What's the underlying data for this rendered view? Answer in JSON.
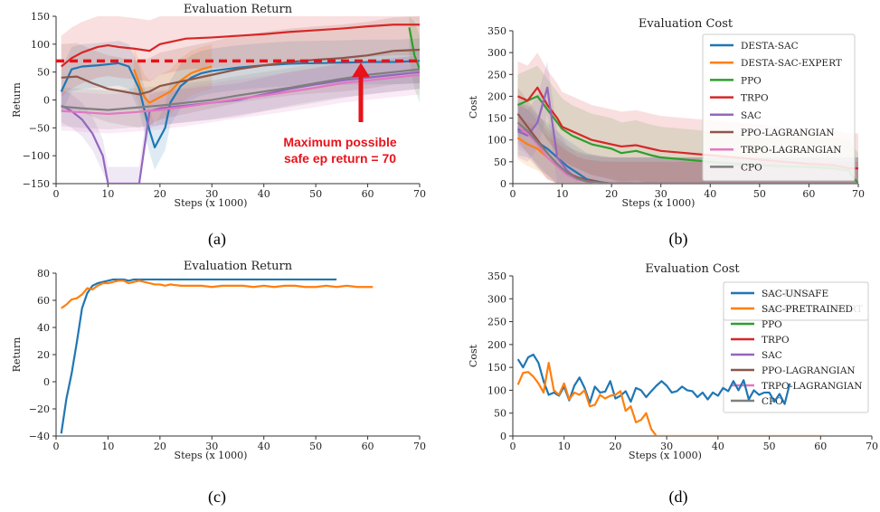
{
  "chart_data": [
    {
      "type": "line",
      "panel": "a",
      "title": "Evaluation Return",
      "xlabel": "Steps (x 1000)",
      "ylabel": "Return",
      "xlim": [
        0,
        70
      ],
      "ylim": [
        -150,
        150
      ],
      "xticks": [
        "0",
        "10",
        "20",
        "30",
        "40",
        "50",
        "60",
        "70"
      ],
      "yticks": [
        "150",
        "100",
        "50",
        "0",
        "−50",
        "−100",
        "−150"
      ],
      "caption": "(a)",
      "annotation": {
        "text": [
          "Maximum possible",
          "safe ep return = 70"
        ],
        "line_value": 70,
        "color": "#e8121a"
      },
      "series": [
        {
          "name": "DESTA-SAC",
          "color": "#1f77b4",
          "x": [
            1,
            3,
            5,
            8,
            10,
            12,
            14,
            16,
            18,
            19,
            21,
            22,
            24,
            26,
            28,
            30,
            35,
            40,
            45,
            50,
            55,
            60,
            65,
            70
          ],
          "y": [
            15,
            55,
            60,
            62,
            64,
            66,
            60,
            20,
            -55,
            -85,
            -50,
            -5,
            25,
            40,
            48,
            52,
            58,
            62,
            65,
            66,
            67,
            68,
            68,
            70
          ],
          "band": 40
        },
        {
          "name": "DESTA-SAC-EXPERT",
          "color": "#ff7f0e",
          "x": [
            15,
            16,
            17,
            18,
            19,
            20,
            22,
            24,
            26,
            28,
            30
          ],
          "y": [
            55,
            30,
            5,
            -5,
            0,
            5,
            15,
            35,
            48,
            55,
            60
          ],
          "band": 40
        },
        {
          "name": "PPO",
          "color": "#2ca02c",
          "x": [
            68,
            69,
            70
          ],
          "y": [
            130,
            80,
            55
          ],
          "band": 60
        },
        {
          "name": "TRPO",
          "color": "#d62728",
          "x": [
            1,
            3,
            5,
            8,
            10,
            12,
            15,
            18,
            20,
            25,
            30,
            35,
            40,
            45,
            50,
            55,
            60,
            65,
            70
          ],
          "y": [
            60,
            75,
            85,
            95,
            98,
            95,
            92,
            88,
            100,
            110,
            112,
            115,
            118,
            122,
            125,
            128,
            132,
            135,
            135
          ],
          "band": 55
        },
        {
          "name": "SAC",
          "color": "#9467bd",
          "x": [
            1,
            3,
            5,
            7,
            9,
            10,
            11,
            12,
            14,
            16,
            18,
            20,
            25,
            30,
            35,
            40,
            45,
            50,
            55,
            60,
            65,
            70
          ],
          "y": [
            -10,
            -20,
            -35,
            -60,
            -100,
            -150,
            -150,
            -150,
            -150,
            -150,
            -20,
            -15,
            -10,
            -5,
            0,
            10,
            20,
            28,
            35,
            40,
            45,
            50
          ],
          "band": 30
        },
        {
          "name": "PPO-LAGRANGIAN",
          "color": "#8c564b",
          "x": [
            1,
            4,
            7,
            10,
            13,
            16,
            18,
            20,
            25,
            30,
            35,
            40,
            45,
            50,
            55,
            60,
            65,
            70
          ],
          "y": [
            40,
            42,
            30,
            20,
            15,
            10,
            15,
            25,
            35,
            45,
            55,
            62,
            68,
            72,
            75,
            80,
            88,
            90
          ],
          "band": 60
        },
        {
          "name": "TRPO-LAGRANGIAN",
          "color": "#e377c2",
          "x": [
            1,
            5,
            10,
            15,
            20,
            25,
            30,
            35,
            40,
            45,
            50,
            55,
            60,
            65,
            70
          ],
          "y": [
            -20,
            -22,
            -25,
            -22,
            -18,
            -12,
            -5,
            2,
            8,
            15,
            22,
            30,
            35,
            40,
            45
          ],
          "band": 35
        },
        {
          "name": "CPO",
          "color": "#7f7f7f",
          "x": [
            1,
            5,
            10,
            15,
            20,
            25,
            30,
            35,
            40,
            45,
            50,
            55,
            60,
            65,
            70
          ],
          "y": [
            -12,
            -15,
            -18,
            -14,
            -10,
            -5,
            0,
            8,
            15,
            22,
            30,
            38,
            45,
            50,
            55
          ],
          "band": 35
        }
      ]
    },
    {
      "type": "line",
      "panel": "b",
      "title": "Evaluation Cost",
      "xlabel": "Steps (x 1000)",
      "ylabel": "Cost",
      "xlim": [
        0,
        70
      ],
      "ylim": [
        0,
        350
      ],
      "xticks": [
        "0",
        "10",
        "20",
        "30",
        "40",
        "50",
        "60",
        "70"
      ],
      "yticks": [
        "350",
        "300",
        "250",
        "200",
        "150",
        "100",
        "50",
        "0"
      ],
      "caption": "(b)",
      "legend": "top-right",
      "series": [
        {
          "name": "DESTA-SAC",
          "color": "#1f77b4",
          "x": [
            1,
            3,
            5,
            7,
            9,
            11,
            13,
            15,
            18,
            20,
            25,
            30,
            40,
            50,
            60,
            70
          ],
          "y": [
            125,
            120,
            95,
            80,
            60,
            40,
            25,
            10,
            3,
            0,
            0,
            0,
            0,
            0,
            0,
            0
          ],
          "band": 60
        },
        {
          "name": "DESTA-SAC-EXPERT",
          "color": "#ff7f0e",
          "x": [
            1,
            3,
            5,
            7,
            9,
            11,
            13,
            15,
            18,
            20,
            25,
            30,
            40,
            50,
            60,
            70
          ],
          "y": [
            105,
            90,
            80,
            60,
            40,
            25,
            12,
            5,
            0,
            0,
            0,
            0,
            0,
            0,
            0,
            0
          ],
          "band": 50
        },
        {
          "name": "PPO",
          "color": "#2ca02c",
          "x": [
            1,
            3,
            5,
            7,
            9,
            10,
            12,
            14,
            16,
            18,
            20,
            22,
            25,
            28,
            30,
            35,
            40,
            45,
            50,
            55,
            60,
            65,
            68,
            70
          ],
          "y": [
            180,
            190,
            200,
            170,
            140,
            125,
            110,
            100,
            90,
            85,
            80,
            70,
            75,
            65,
            60,
            55,
            50,
            45,
            42,
            40,
            38,
            35,
            30,
            0
          ],
          "band": 70
        },
        {
          "name": "TRPO",
          "color": "#d62728",
          "x": [
            1,
            3,
            5,
            7,
            9,
            10,
            12,
            14,
            16,
            18,
            20,
            22,
            25,
            28,
            30,
            35,
            40,
            45,
            50,
            55,
            60,
            65,
            68,
            70
          ],
          "y": [
            200,
            190,
            220,
            180,
            150,
            130,
            120,
            110,
            100,
            95,
            90,
            85,
            88,
            80,
            75,
            70,
            65,
            60,
            55,
            50,
            45,
            42,
            35,
            35
          ],
          "band": 80
        },
        {
          "name": "SAC",
          "color": "#9467bd",
          "x": [
            1,
            3,
            5,
            7,
            9,
            11,
            13,
            15,
            18,
            20,
            25,
            30,
            40,
            50,
            60,
            70
          ],
          "y": [
            120,
            110,
            140,
            220,
            60,
            30,
            10,
            5,
            0,
            0,
            0,
            0,
            0,
            0,
            0,
            0
          ],
          "band": 60
        },
        {
          "name": "PPO-LAGRANGIAN",
          "color": "#8c564b",
          "x": [
            1,
            3,
            5,
            7,
            9,
            11,
            13,
            15,
            18,
            20,
            25,
            30,
            40,
            50,
            60,
            70
          ],
          "y": [
            160,
            130,
            100,
            70,
            45,
            25,
            15,
            8,
            3,
            0,
            0,
            0,
            0,
            0,
            0,
            0
          ],
          "band": 60
        },
        {
          "name": "TRPO-LAGRANGIAN",
          "color": "#e377c2",
          "x": [
            1,
            3,
            5,
            7,
            9,
            11,
            13,
            15,
            18,
            20,
            25,
            30,
            40,
            50,
            60,
            70
          ],
          "y": [
            130,
            115,
            90,
            60,
            40,
            20,
            10,
            5,
            0,
            0,
            0,
            0,
            0,
            0,
            0,
            0
          ],
          "band": 50
        },
        {
          "name": "CPO",
          "color": "#7f7f7f",
          "x": [
            1,
            3,
            5,
            7,
            9,
            11,
            13,
            15,
            18,
            20,
            25,
            30,
            40,
            50,
            60,
            70
          ],
          "y": [
            140,
            120,
            95,
            70,
            45,
            25,
            12,
            5,
            2,
            0,
            0,
            0,
            0,
            0,
            0,
            0
          ],
          "band": 50
        }
      ]
    },
    {
      "type": "line",
      "panel": "c",
      "title": "Evaluation Return",
      "xlabel": "Steps (x 1000)",
      "ylabel": "Return",
      "xlim": [
        0,
        70
      ],
      "ylim": [
        -50,
        80
      ],
      "xticks": [
        "0",
        "10",
        "20",
        "30",
        "40",
        "50",
        "60",
        "70"
      ],
      "yticks": [
        "80",
        "60",
        "40",
        "20",
        "0",
        "−20",
        "−40"
      ],
      "caption": "(c)",
      "series": [
        {
          "color": "#1f77b4",
          "x": [
            1,
            2,
            3,
            4,
            5,
            6,
            7,
            8,
            9,
            10,
            11,
            12,
            13,
            14,
            15,
            16,
            17,
            18,
            19,
            20,
            22,
            24,
            26,
            28,
            30,
            32,
            34,
            36,
            38,
            40,
            42,
            44,
            46,
            48,
            50,
            52,
            54
          ],
          "y": [
            -48,
            -20,
            0,
            25,
            52,
            64,
            70,
            72,
            73,
            74,
            75,
            75,
            75,
            74,
            75,
            75,
            75,
            75,
            75,
            75,
            75,
            75,
            75,
            75,
            75,
            75,
            75,
            75,
            75,
            75,
            75,
            75,
            75,
            75,
            75,
            75,
            75
          ]
        },
        {
          "color": "#ff7f0e",
          "x": [
            1,
            2,
            3,
            4,
            5,
            6,
            7,
            8,
            9,
            10,
            11,
            12,
            13,
            14,
            15,
            16,
            17,
            18,
            19,
            20,
            21,
            22,
            24,
            26,
            28,
            30,
            32,
            34,
            36,
            38,
            40,
            42,
            44,
            46,
            48,
            50,
            52,
            54,
            56,
            58,
            60,
            61
          ],
          "y": [
            52,
            55,
            59,
            60,
            63,
            68,
            67,
            70,
            72,
            72,
            73,
            74,
            74,
            72,
            73,
            74,
            73,
            72,
            71,
            71,
            70,
            71,
            70,
            70,
            70,
            69,
            70,
            70,
            70,
            69,
            70,
            69,
            70,
            70,
            69,
            69,
            70,
            69,
            70,
            69,
            69,
            69
          ]
        }
      ]
    },
    {
      "type": "line",
      "panel": "d",
      "title": "Evaluation Cost",
      "xlabel": "Steps (x 1000)",
      "ylabel": "Cost",
      "xlim": [
        0,
        70
      ],
      "ylim": [
        0,
        350
      ],
      "xticks": [
        "0",
        "10",
        "20",
        "30",
        "40",
        "50",
        "60",
        "70"
      ],
      "yticks": [
        "350",
        "300",
        "250",
        "200",
        "150",
        "100",
        "50",
        "0"
      ],
      "caption": "(d)",
      "legend": "top-right",
      "series": [
        {
          "name": "SAC-UNSAFE",
          "color": "#1f77b4",
          "x": [
            1,
            2,
            3,
            4,
            5,
            6,
            7,
            8,
            9,
            10,
            11,
            12,
            13,
            14,
            15,
            16,
            17,
            18,
            19,
            20,
            21,
            22,
            23,
            24,
            25,
            26,
            27,
            28,
            29,
            30,
            31,
            32,
            33,
            34,
            35,
            36,
            37,
            38,
            39,
            40,
            41,
            42,
            43,
            44,
            45,
            46,
            47,
            48,
            49,
            50,
            51,
            52,
            53,
            54
          ],
          "y": [
            168,
            150,
            172,
            178,
            160,
            120,
            90,
            95,
            88,
            108,
            78,
            110,
            128,
            105,
            72,
            108,
            95,
            97,
            120,
            82,
            88,
            98,
            75,
            105,
            100,
            85,
            98,
            110,
            120,
            110,
            95,
            98,
            108,
            100,
            98,
            85,
            95,
            80,
            95,
            88,
            105,
            98,
            120,
            100,
            122,
            80,
            100,
            90,
            95,
            95,
            75,
            92,
            70,
            115
          ]
        },
        {
          "name": "SAC-PRETRAINED",
          "color": "#ff7f0e",
          "x": [
            1,
            2,
            3,
            4,
            5,
            6,
            7,
            8,
            9,
            10,
            11,
            12,
            13,
            14,
            15,
            16,
            17,
            18,
            19,
            20,
            21,
            22,
            23,
            24,
            25,
            26,
            27,
            28,
            29,
            30,
            32,
            35,
            40,
            45,
            50,
            55,
            60,
            61
          ],
          "y": [
            112,
            138,
            140,
            130,
            115,
            95,
            160,
            100,
            90,
            115,
            80,
            95,
            90,
            100,
            65,
            68,
            90,
            82,
            88,
            90,
            98,
            55,
            65,
            30,
            35,
            50,
            15,
            0,
            0,
            0,
            0,
            0,
            0,
            0,
            0,
            0,
            0,
            0
          ]
        }
      ]
    }
  ]
}
